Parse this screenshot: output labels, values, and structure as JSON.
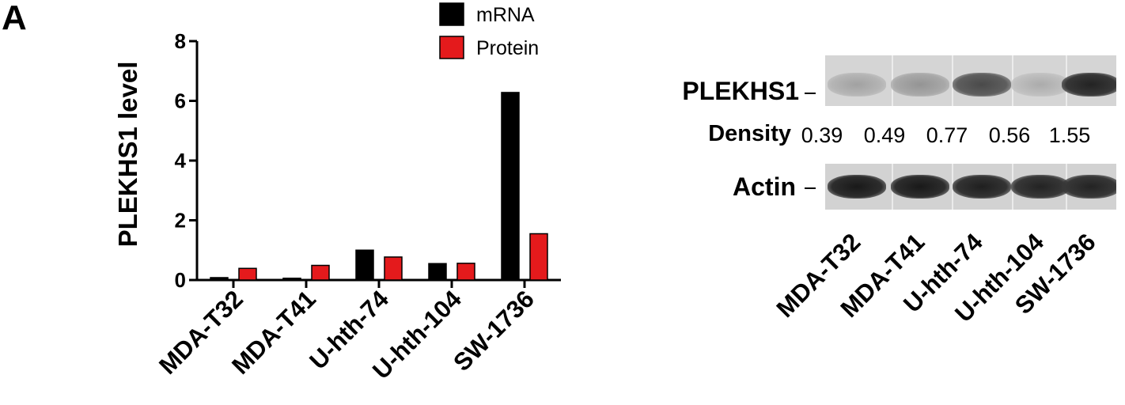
{
  "panel_label": "A",
  "colors": {
    "mrna": "#000000",
    "protein": "#e41a1c"
  },
  "chart_data": {
    "type": "bar",
    "categories": [
      "MDA-T32",
      "MDA-T41",
      "U-hth-74",
      "U-hth-104",
      "SW-1736"
    ],
    "series": [
      {
        "name": "mRNA",
        "values": [
          0.08,
          0.06,
          1.0,
          0.55,
          6.28
        ]
      },
      {
        "name": "Protein",
        "values": [
          0.39,
          0.49,
          0.77,
          0.56,
          1.55
        ]
      }
    ],
    "ylabel": "PLEKHS1  level",
    "xlabel": "",
    "ylim": [
      0,
      8
    ],
    "yticks": [
      "0",
      "2",
      "4",
      "6",
      "8"
    ],
    "legend": "top-right",
    "grid": false
  },
  "blot": {
    "target_label": "PLEKHS1",
    "density_label": "Density",
    "density_values": [
      "0.39",
      "0.49",
      "0.77",
      "0.56",
      "1.55"
    ],
    "control_label": "Actin",
    "lanes": [
      "MDA-T32",
      "MDA-T41",
      "U-hth-74",
      "U-hth-104",
      "SW-1736"
    ],
    "target_band_intensity": [
      0.25,
      0.32,
      0.7,
      0.2,
      0.9
    ],
    "actin_band_intensity": [
      0.95,
      0.95,
      0.92,
      0.9,
      0.9
    ]
  }
}
